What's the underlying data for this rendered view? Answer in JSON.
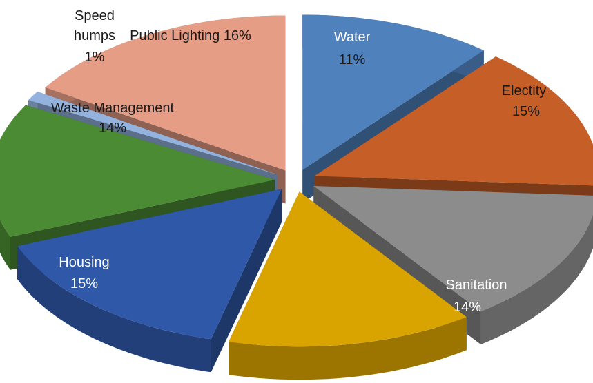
{
  "chart_data": {
    "type": "pie",
    "title": "",
    "slices": [
      {
        "label": "Water",
        "value_label": "11%",
        "value": 11,
        "color": "#4f81bd"
      },
      {
        "label": "Electity",
        "value_label": "15%",
        "value": 15,
        "color": "#c65f27"
      },
      {
        "label": "Sanitation",
        "value_label": "14%",
        "value": 14,
        "color": "#8c8c8c"
      },
      {
        "label": "",
        "value_label": "",
        "value": 14,
        "color": "#d9a300"
      },
      {
        "label": "Housing",
        "value_label": "15%",
        "value": 15,
        "color": "#2f58a8"
      },
      {
        "label": "Waste Management",
        "value_label": "14%",
        "value": 14,
        "color": "#4b8b34"
      },
      {
        "label": "Speed humps",
        "value_label": "1%",
        "value": 1,
        "color": "#93b3de"
      },
      {
        "label": "Public Lighting",
        "value_label": "16%",
        "value": 16,
        "color": "#e59d86"
      }
    ],
    "labels": {
      "water_name": "Water",
      "water_pct": "11%",
      "electity_name": "Electity",
      "electity_pct": "15%",
      "sanitation_name": "Sanitation",
      "sanitation_pct": "14%",
      "housing_name": "Housing",
      "housing_pct": "15%",
      "waste_name": "Waste Management",
      "waste_pct": "14%",
      "speed_line1": "Speed",
      "speed_line2": "humps",
      "speed_pct": "1%",
      "lighting_full": "Public Lighting 16%"
    }
  }
}
